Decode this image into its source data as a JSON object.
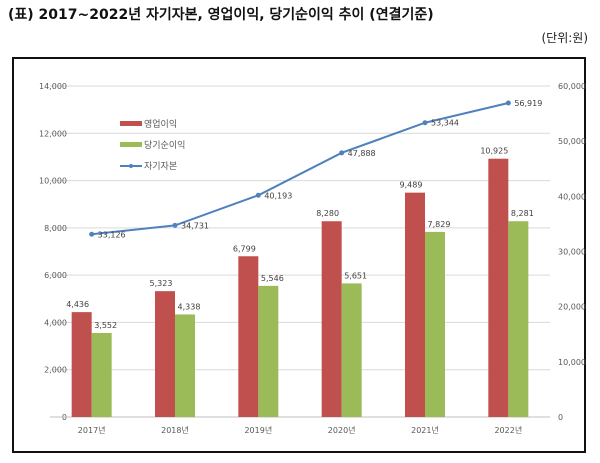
{
  "title": "(표) 2017~2022년 자기자본, 영업이익, 당기순이익 추이 (연결기준)",
  "unit": "(단위:원)",
  "chart_data": {
    "type": "bar+line",
    "categories": [
      "2017년",
      "2018년",
      "2019년",
      "2020년",
      "2021년",
      "2022년"
    ],
    "series": [
      {
        "name": "영업이익",
        "type": "bar",
        "axis": "left",
        "color": "#c0504d",
        "values": [
          4436,
          5323,
          6799,
          8280,
          9489,
          10925
        ]
      },
      {
        "name": "당기순이익",
        "type": "bar",
        "axis": "left",
        "color": "#9bbb59",
        "values": [
          3552,
          4338,
          5546,
          5651,
          7829,
          8281
        ]
      },
      {
        "name": "자기자본",
        "type": "line",
        "axis": "right",
        "color": "#4f81bd",
        "values": [
          33126,
          34731,
          40193,
          47888,
          53344,
          56919
        ]
      }
    ],
    "ylim_left": [
      0,
      14000
    ],
    "yticks_left": [
      0,
      2000,
      4000,
      6000,
      8000,
      10000,
      12000,
      14000
    ],
    "ylim_right": [
      0,
      60000
    ],
    "yticks_right": [
      0,
      10000,
      20000,
      30000,
      40000,
      50000,
      60000
    ],
    "grid": true,
    "legend": "top-left"
  }
}
